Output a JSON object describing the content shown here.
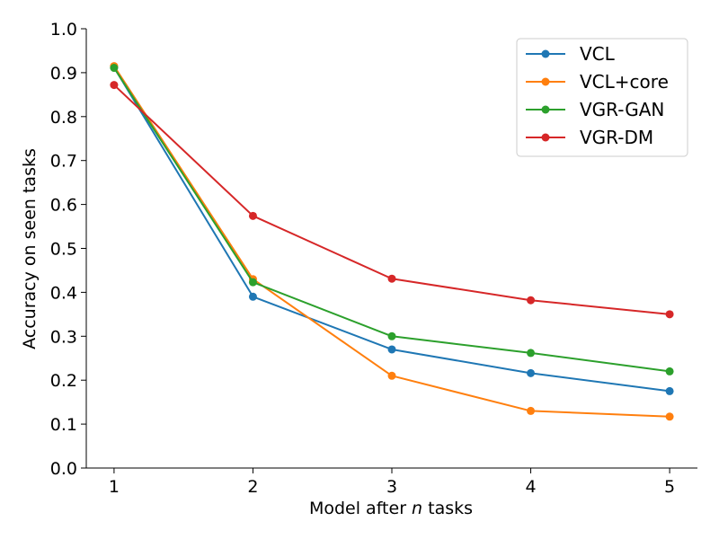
{
  "chart_data": {
    "type": "line",
    "x": [
      1,
      2,
      3,
      4,
      5
    ],
    "xticks": [
      "1",
      "2",
      "3",
      "4",
      "5"
    ],
    "yticks": [
      "0.0",
      "0.1",
      "0.2",
      "0.3",
      "0.4",
      "0.5",
      "0.6",
      "0.7",
      "0.8",
      "0.9",
      "1.0"
    ],
    "xlim": [
      0.8,
      5.2
    ],
    "ylim": [
      0.0,
      1.0
    ],
    "xlabel_prefix": "Model after ",
    "xlabel_var": "n",
    "xlabel_suffix": " tasks",
    "ylabel": "Accuracy on seen tasks",
    "grid": false,
    "legend_position": "top-right",
    "series": [
      {
        "name": "VCL",
        "color": "#1f77b4",
        "values": [
          0.912,
          0.39,
          0.27,
          0.216,
          0.175
        ]
      },
      {
        "name": "VCL+core",
        "color": "#ff7f0e",
        "values": [
          0.915,
          0.43,
          0.21,
          0.13,
          0.117
        ]
      },
      {
        "name": "VGR-GAN",
        "color": "#2ca02c",
        "values": [
          0.911,
          0.423,
          0.3,
          0.262,
          0.22
        ]
      },
      {
        "name": "VGR-DM",
        "color": "#d62728",
        "values": [
          0.872,
          0.574,
          0.431,
          0.382,
          0.35
        ]
      }
    ]
  }
}
